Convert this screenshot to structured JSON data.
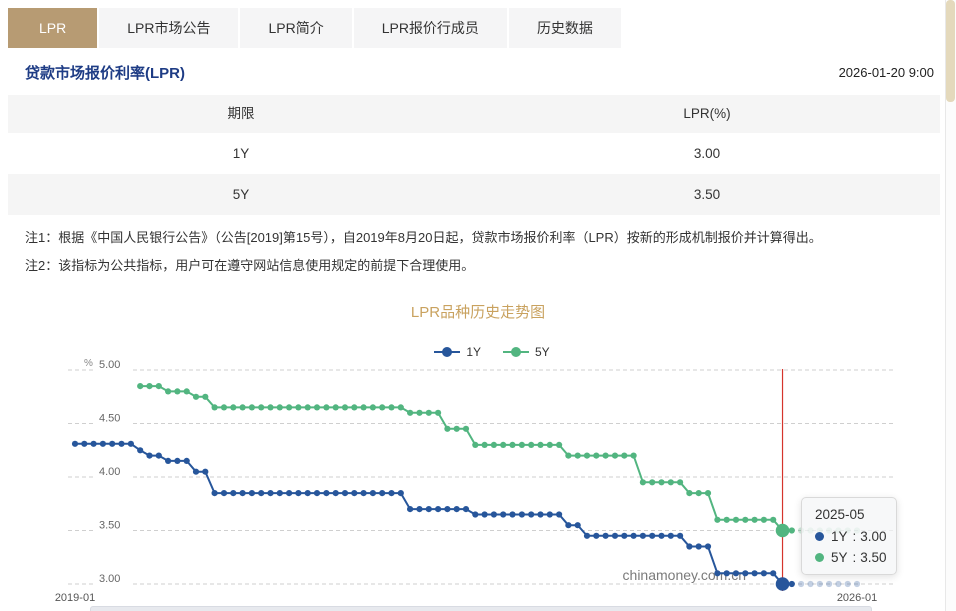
{
  "tabs": [
    {
      "label": "LPR",
      "active": true
    },
    {
      "label": "LPR市场公告",
      "active": false
    },
    {
      "label": "LPR简介",
      "active": false
    },
    {
      "label": "LPR报价行成员",
      "active": false
    },
    {
      "label": "历史数据",
      "active": false
    }
  ],
  "header": {
    "title": "贷款市场报价利率(LPR)",
    "timestamp": "2026-01-20 9:00"
  },
  "rate_table": {
    "columns": [
      "期限",
      "LPR(%)"
    ],
    "rows": [
      [
        "1Y",
        "3.00"
      ],
      [
        "5Y",
        "3.50"
      ]
    ]
  },
  "notes": [
    "注1：根据《中国人民银行公告》（公告[2019]第15号），自2019年8月20日起，贷款市场报价利率（LPR）按新的形成机制报价并计算得出。",
    "注2：该指标为公共指标，用户可在遵守网站信息使用规定的前提下合理使用。"
  ],
  "tooltip": {
    "title": "2025-05",
    "separator": ":",
    "rows": [
      {
        "name": "1Y",
        "value": "3.00"
      },
      {
        "name": "5Y",
        "value": "3.50"
      }
    ]
  },
  "colors": {
    "accent_tan": "#b79b73",
    "title_blue": "#1e3c85",
    "chart_title_gold": "#c9a25f"
  },
  "chart_data": {
    "type": "line",
    "title": "LPR品种历史走势图",
    "ylabel": "%",
    "ylim": [
      3.0,
      5.0
    ],
    "yticks": [
      "5.00",
      "4.50",
      "4.00",
      "3.50",
      "3.00"
    ],
    "grid": "dashed",
    "legend_position": "top-center",
    "x_start": "2019-01",
    "x_end": "2026-01",
    "x_interval": "month",
    "x_axis_labels": [
      "2019-01",
      "2026-01"
    ],
    "watermark": "chinamoney.com.cn",
    "highlight": {
      "index": 76,
      "label": "2025-05",
      "color": "#d5342c"
    },
    "faded_from_index": 78,
    "series": [
      {
        "name": "1Y",
        "color": "#27569b",
        "values": [
          4.31,
          4.31,
          4.31,
          4.31,
          4.31,
          4.31,
          4.31,
          4.25,
          4.2,
          4.2,
          4.15,
          4.15,
          4.15,
          4.05,
          4.05,
          3.85,
          3.85,
          3.85,
          3.85,
          3.85,
          3.85,
          3.85,
          3.85,
          3.85,
          3.85,
          3.85,
          3.85,
          3.85,
          3.85,
          3.85,
          3.85,
          3.85,
          3.85,
          3.85,
          3.85,
          3.85,
          3.7,
          3.7,
          3.7,
          3.7,
          3.7,
          3.7,
          3.7,
          3.65,
          3.65,
          3.65,
          3.65,
          3.65,
          3.65,
          3.65,
          3.65,
          3.65,
          3.65,
          3.55,
          3.55,
          3.45,
          3.45,
          3.45,
          3.45,
          3.45,
          3.45,
          3.45,
          3.45,
          3.45,
          3.45,
          3.45,
          3.35,
          3.35,
          3.35,
          3.1,
          3.1,
          3.1,
          3.1,
          3.1,
          3.1,
          3.1,
          3.0,
          3.0,
          3.0,
          3.0,
          3.0,
          3.0,
          3.0,
          3.0,
          3.0
        ]
      },
      {
        "name": "5Y",
        "color": "#52b580",
        "values": [
          null,
          null,
          null,
          null,
          null,
          null,
          null,
          4.85,
          4.85,
          4.85,
          4.8,
          4.8,
          4.8,
          4.75,
          4.75,
          4.65,
          4.65,
          4.65,
          4.65,
          4.65,
          4.65,
          4.65,
          4.65,
          4.65,
          4.65,
          4.65,
          4.65,
          4.65,
          4.65,
          4.65,
          4.65,
          4.65,
          4.65,
          4.65,
          4.65,
          4.65,
          4.6,
          4.6,
          4.6,
          4.6,
          4.45,
          4.45,
          4.45,
          4.3,
          4.3,
          4.3,
          4.3,
          4.3,
          4.3,
          4.3,
          4.3,
          4.3,
          4.3,
          4.2,
          4.2,
          4.2,
          4.2,
          4.2,
          4.2,
          4.2,
          4.2,
          3.95,
          3.95,
          3.95,
          3.95,
          3.95,
          3.85,
          3.85,
          3.85,
          3.6,
          3.6,
          3.6,
          3.6,
          3.6,
          3.6,
          3.6,
          3.5,
          3.5,
          3.5,
          3.5,
          3.5,
          3.5,
          3.5,
          3.5,
          3.5
        ]
      }
    ]
  }
}
